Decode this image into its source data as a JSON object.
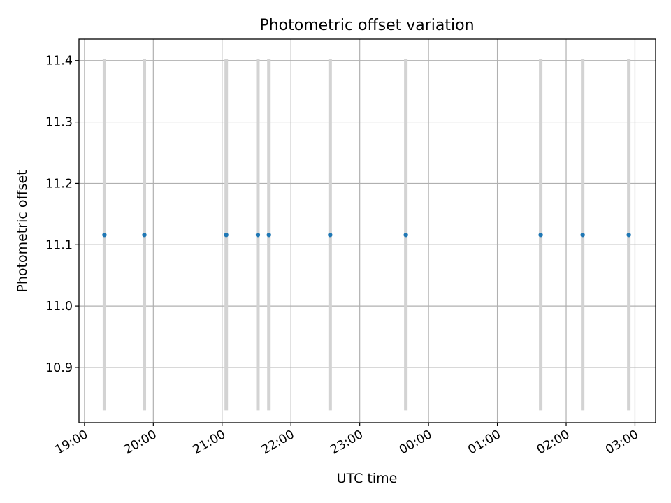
{
  "chart_data": {
    "type": "scatter",
    "title": "Photometric offset variation",
    "xlabel": "UTC time",
    "ylabel": "Photometric offset",
    "x_ticks": [
      "19:00",
      "20:00",
      "21:00",
      "22:00",
      "23:00",
      "00:00",
      "01:00",
      "02:00",
      "03:00"
    ],
    "x_tick_hours": [
      19,
      20,
      21,
      22,
      23,
      24,
      25,
      26,
      27
    ],
    "x_range_hours": [
      18.92,
      27.3
    ],
    "y_ticks": [
      "10.9",
      "11.0",
      "11.1",
      "11.2",
      "11.3",
      "11.4"
    ],
    "y_tick_values": [
      10.9,
      11.0,
      11.1,
      11.2,
      11.3,
      11.4
    ],
    "ylim": [
      10.81,
      11.435
    ],
    "grid": true,
    "points": [
      {
        "time": "19:17",
        "hours": 19.29,
        "value": 11.116,
        "err_low": 10.83,
        "err_high": 11.403
      },
      {
        "time": "19:52",
        "hours": 19.87,
        "value": 11.116,
        "err_low": 10.83,
        "err_high": 11.403
      },
      {
        "time": "21:04",
        "hours": 21.06,
        "value": 11.116,
        "err_low": 10.83,
        "err_high": 11.403
      },
      {
        "time": "21:31",
        "hours": 21.52,
        "value": 11.116,
        "err_low": 10.83,
        "err_high": 11.403
      },
      {
        "time": "21:41",
        "hours": 21.68,
        "value": 11.116,
        "err_low": 10.83,
        "err_high": 11.403
      },
      {
        "time": "22:34",
        "hours": 22.57,
        "value": 11.116,
        "err_low": 10.83,
        "err_high": 11.403
      },
      {
        "time": "23:40",
        "hours": 23.67,
        "value": 11.116,
        "err_low": 10.83,
        "err_high": 11.403
      },
      {
        "time": "01:37",
        "hours": 25.63,
        "value": 11.116,
        "err_low": 10.83,
        "err_high": 11.403
      },
      {
        "time": "02:14",
        "hours": 26.24,
        "value": 11.116,
        "err_low": 10.83,
        "err_high": 11.403
      },
      {
        "time": "02:54",
        "hours": 26.91,
        "value": 11.116,
        "err_low": 10.83,
        "err_high": 11.403
      }
    ],
    "marker_color": "#1f77b4",
    "errorbar_color": "#d3d3d3",
    "grid_color": "#b0b0b0"
  }
}
